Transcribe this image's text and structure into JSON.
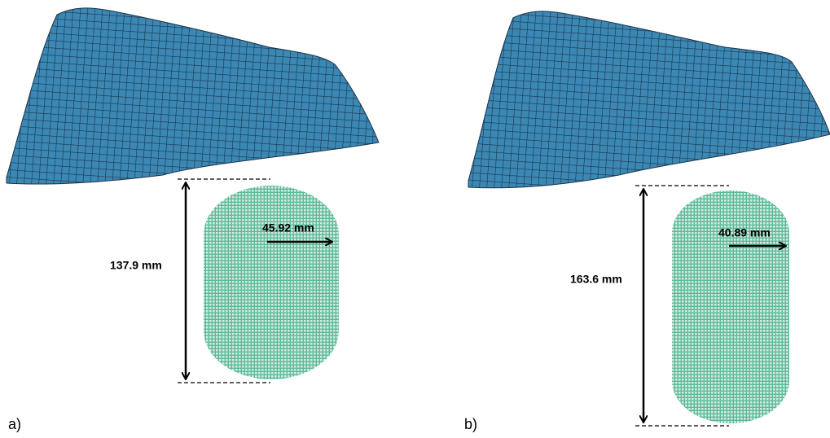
{
  "panels": [
    {
      "label": "a)",
      "height_label": "137.9 mm",
      "width_label": "45.92 mm"
    },
    {
      "label": "b)",
      "height_label": "163.6 mm",
      "width_label": "40.89 mm"
    }
  ]
}
